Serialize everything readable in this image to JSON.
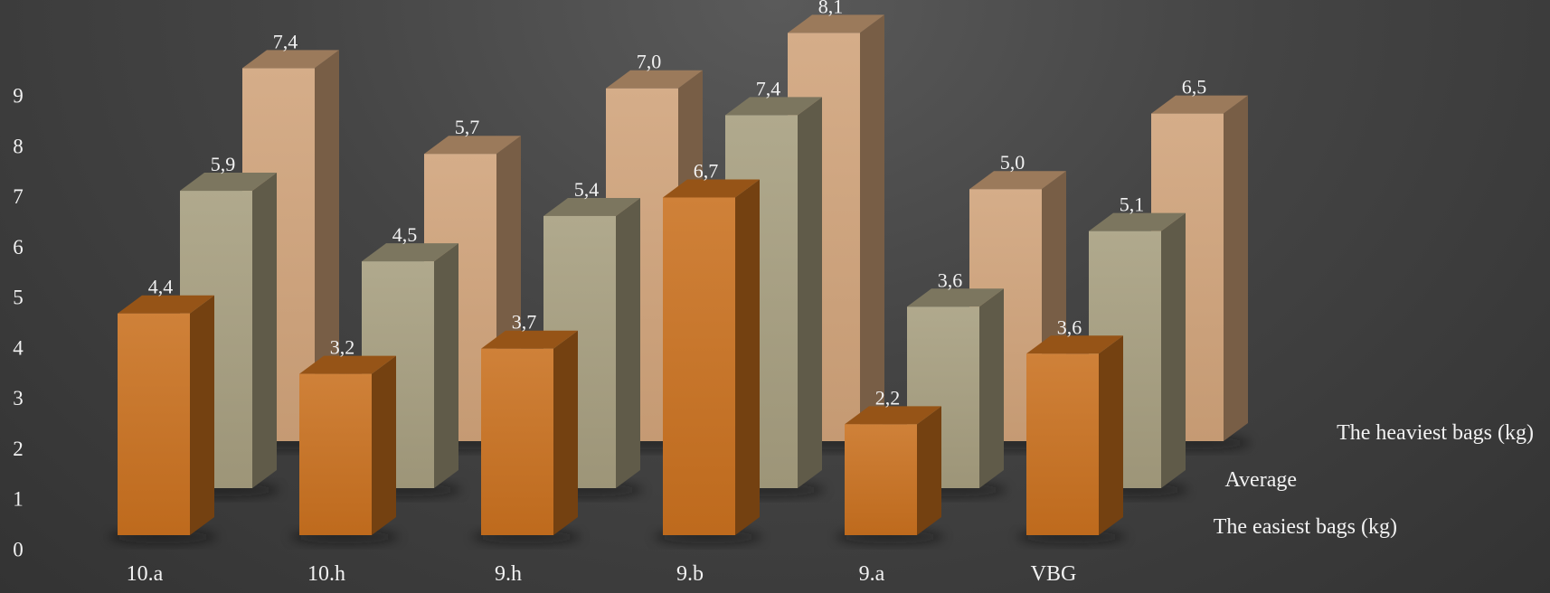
{
  "chart_data": {
    "type": "bar",
    "variant": "3d-depth",
    "categories": [
      "10.a",
      "10.h",
      "9.h",
      "9.b",
      "9.a",
      "VBG"
    ],
    "ylim": [
      0,
      9
    ],
    "yticks": [
      0,
      1,
      2,
      3,
      4,
      5,
      6,
      7,
      8,
      9
    ],
    "decimal_separator": ",",
    "series": [
      {
        "name": "The easiest bags (kg)",
        "values": [
          4.4,
          3.2,
          3.7,
          6.7,
          2.2,
          3.6
        ],
        "color": "#c8701e"
      },
      {
        "name": "Average",
        "values": [
          5.9,
          4.5,
          5.4,
          7.4,
          3.6,
          5.1
        ],
        "color": "#a59d7e"
      },
      {
        "name": "The heaviest bags (kg)",
        "values": [
          7.4,
          5.7,
          7.0,
          8.1,
          5.0,
          6.5
        ],
        "color": "#cfa279"
      }
    ],
    "grid": false,
    "legend": "right-depth-rows"
  }
}
